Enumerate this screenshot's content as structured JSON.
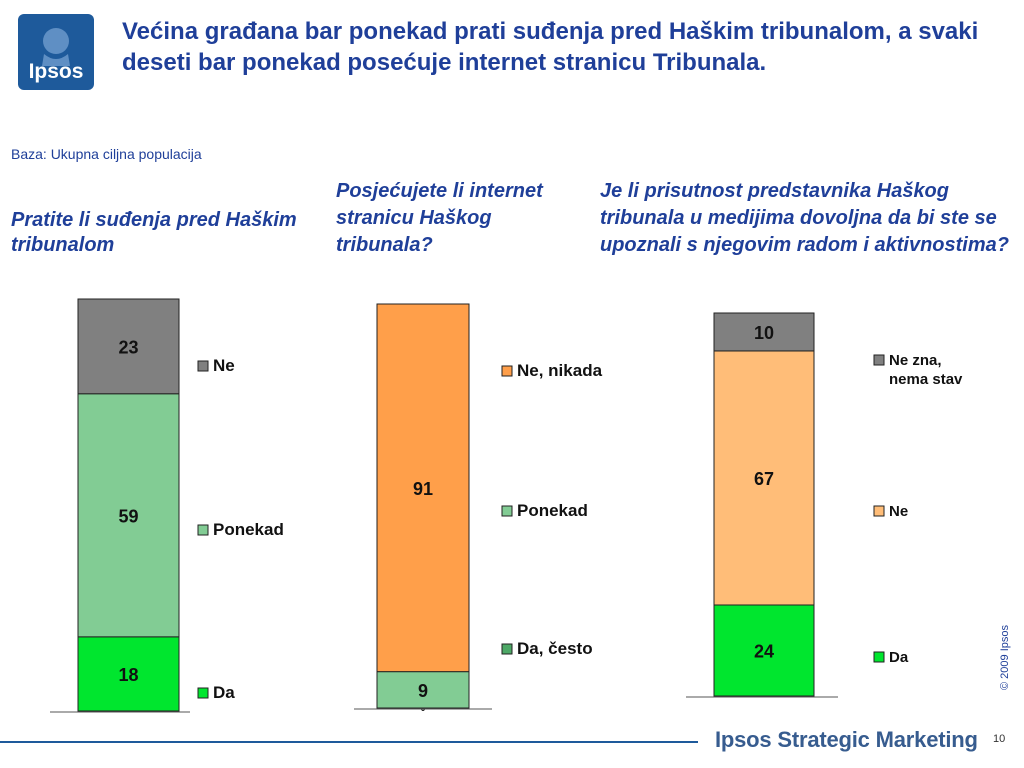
{
  "header": {
    "logo_text": "Ipsos",
    "title": "Većina građana bar ponekad prati suđenja pred Haškim tribunalom, a svaki deseti bar ponekad posećuje internet stranicu Tribunala."
  },
  "base_note": "Baza: Ukupna ciljna populacija",
  "footer": {
    "copyright": "© 2009 Ipsos",
    "brand": "Ipsos Strategic Marketing",
    "page_number": "10"
  },
  "colors": {
    "gray": "#808080",
    "light_green": "#82cc94",
    "bright_green": "#00e62e",
    "orange": "#ff9f4a",
    "peach": "#ffbd78",
    "dark_green": "#4da866",
    "title_blue": "#1f3f99",
    "brand_blue": "#1e5a9b"
  },
  "chart_data": [
    {
      "type": "bar",
      "stacked": true,
      "title": "Pratite li suđenja pred Haškim tribunalom",
      "ylim": [
        0,
        100
      ],
      "grid": false,
      "legend_position": "right",
      "series": [
        {
          "name": "Da",
          "value": 18,
          "label": "18",
          "color": "#00e62e"
        },
        {
          "name": "Ponekad",
          "value": 59,
          "label": "59",
          "color": "#82cc94"
        },
        {
          "name": "Ne",
          "value": 23,
          "label": "23",
          "color": "#808080"
        }
      ]
    },
    {
      "type": "bar",
      "stacked": true,
      "title": "Posjećujete li internet stranicu Haškog tribunala?",
      "ylim": [
        0,
        100
      ],
      "grid": false,
      "legend_position": "right",
      "series": [
        {
          "name": "Da, često",
          "value": 0,
          "label": "0",
          "color": "#4da866"
        },
        {
          "name": "Ponekad",
          "value": 9,
          "label": "9",
          "color": "#82cc94"
        },
        {
          "name": "Ne, nikada",
          "value": 91,
          "label": "91",
          "color": "#ff9f4a"
        }
      ]
    },
    {
      "type": "bar",
      "stacked": true,
      "title": "Je li prisutnost predstavnika Haškog tribunala u medijima dovoljna da bi ste se upoznali s njegovim radom i aktivnostima?",
      "ylim": [
        0,
        100
      ],
      "grid": false,
      "legend_position": "right",
      "series": [
        {
          "name": "Da",
          "value": 24,
          "label": "24",
          "color": "#00e62e"
        },
        {
          "name": "Ne",
          "value": 67,
          "label": "67",
          "color": "#ffbd78"
        },
        {
          "name": "Ne zna, nema stav",
          "value": 10,
          "label": "10",
          "color": "#808080"
        }
      ]
    }
  ]
}
